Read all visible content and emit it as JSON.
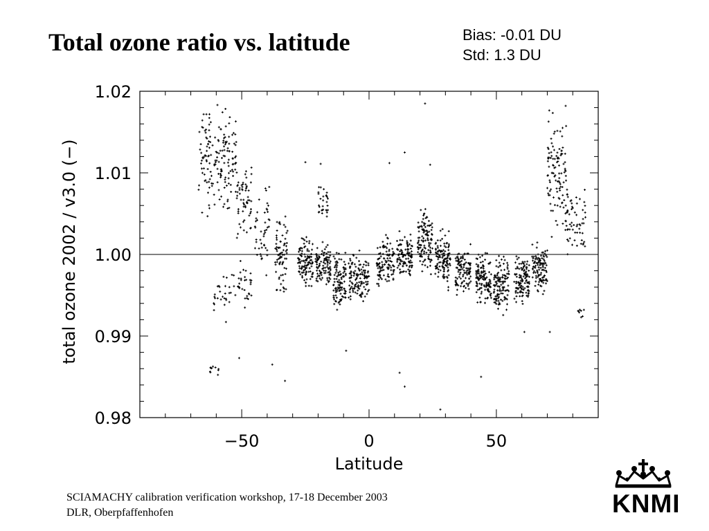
{
  "slide": {
    "title": "Total ozone ratio vs. latitude",
    "stats": [
      "Bias: -0.01 DU",
      "Std: 1.3 DU"
    ],
    "footer": [
      "SCIAMACHY calibration verification workshop, 17-18 December 2003",
      "DLR, Oberpfaffenhofen"
    ],
    "logo": {
      "text": "KNMI",
      "icon": "crown-icon"
    }
  },
  "chart_data": {
    "type": "scatter",
    "xlabel": "Latitude",
    "ylabel": "total ozone 2002 / v3.0 (−)",
    "xlim": [
      -90,
      90
    ],
    "ylim": [
      0.98,
      1.02
    ],
    "xticks": [
      -50,
      0,
      50
    ],
    "xtick_labels": [
      "−50",
      "0",
      "50"
    ],
    "yticks": [
      0.98,
      0.99,
      1.0,
      1.01,
      1.02
    ],
    "ytick_labels": [
      "0.98",
      "0.99",
      "1.00",
      "1.01",
      "1.02"
    ],
    "reference_line": 1.0,
    "grid": false,
    "legend": "none",
    "marker": "+",
    "color": "#000000",
    "series": [
      {
        "note_clusters": "dense latitude bands of points; each band spans x0..x1 in latitude and y0..y1 in ratio, with n points",
        "bands": [
          {
            "x0": -67,
            "x1": -52,
            "y0": 1.003,
            "y1": 1.02,
            "n": 170
          },
          {
            "x0": -61,
            "x1": -52,
            "y0": 0.991,
            "y1": 1.0,
            "n": 30
          },
          {
            "x0": -63,
            "x1": -59,
            "y0": 0.985,
            "y1": 0.987,
            "n": 10
          },
          {
            "x0": -52,
            "x1": -46,
            "y0": 1.0,
            "y1": 1.013,
            "n": 60
          },
          {
            "x0": -52,
            "x1": -46,
            "y0": 0.993,
            "y1": 1.0,
            "n": 30
          },
          {
            "x0": -45,
            "x1": -39,
            "y0": 0.996,
            "y1": 1.011,
            "n": 45
          },
          {
            "x0": -37,
            "x1": -32,
            "y0": 0.994,
            "y1": 1.006,
            "n": 75
          },
          {
            "x0": -28,
            "x1": -22,
            "y0": 0.995,
            "y1": 1.003,
            "n": 110
          },
          {
            "x0": -21,
            "x1": -15,
            "y0": 0.995,
            "y1": 1.002,
            "n": 100
          },
          {
            "x0": -20,
            "x1": -16,
            "y0": 1.003,
            "y1": 1.009,
            "n": 30
          },
          {
            "x0": -14,
            "x1": -9,
            "y0": 0.991,
            "y1": 1.002,
            "n": 110
          },
          {
            "x0": -8,
            "x1": 0,
            "y0": 0.993,
            "y1": 1.001,
            "n": 130
          },
          {
            "x0": 3,
            "x1": 10,
            "y0": 0.995,
            "y1": 1.003,
            "n": 110
          },
          {
            "x0": 11,
            "x1": 17,
            "y0": 0.996,
            "y1": 1.004,
            "n": 110
          },
          {
            "x0": 19,
            "x1": 25,
            "y0": 0.996,
            "y1": 1.007,
            "n": 120
          },
          {
            "x0": 26,
            "x1": 32,
            "y0": 0.995,
            "y1": 1.004,
            "n": 120
          },
          {
            "x0": 34,
            "x1": 40,
            "y0": 0.994,
            "y1": 1.002,
            "n": 110
          },
          {
            "x0": 42,
            "x1": 48,
            "y0": 0.993,
            "y1": 1.001,
            "n": 120
          },
          {
            "x0": 49,
            "x1": 55,
            "y0": 0.992,
            "y1": 1.001,
            "n": 120
          },
          {
            "x0": 57,
            "x1": 63,
            "y0": 0.993,
            "y1": 1.001,
            "n": 120
          },
          {
            "x0": 64,
            "x1": 70,
            "y0": 0.994,
            "y1": 1.002,
            "n": 110
          },
          {
            "x0": 70,
            "x1": 78,
            "y0": 1.0,
            "y1": 1.02,
            "n": 110
          },
          {
            "x0": 77,
            "x1": 85,
            "y0": 0.999,
            "y1": 1.009,
            "n": 60
          },
          {
            "x0": 82,
            "x1": 85,
            "y0": 0.992,
            "y1": 0.994,
            "n": 8
          }
        ],
        "outliers": [
          [
            -51,
            0.9873
          ],
          [
            -38,
            0.9865
          ],
          [
            -33,
            0.9845
          ],
          [
            -9,
            0.9882
          ],
          [
            12,
            0.9855
          ],
          [
            14,
            0.9838
          ],
          [
            14,
            1.0125
          ],
          [
            22,
            1.0185
          ],
          [
            28,
            0.981
          ],
          [
            44,
            0.985
          ],
          [
            61,
            0.9905
          ],
          [
            71,
            0.9905
          ],
          [
            -19,
            1.0111
          ],
          [
            -25,
            1.0113
          ],
          [
            8,
            1.0112
          ],
          [
            24,
            1.011
          ]
        ]
      }
    ]
  }
}
